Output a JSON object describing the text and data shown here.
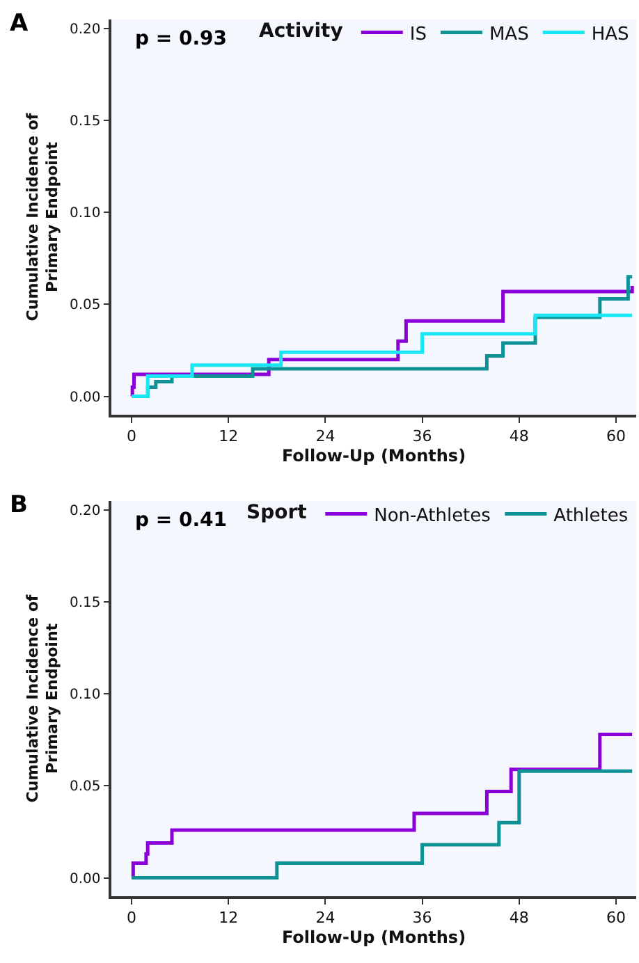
{
  "chart_data": [
    {
      "type": "step",
      "title": "A",
      "xlabel": "Follow-Up (Months)",
      "ylabel": "Cumulative Incidence of\nPrimary Endpoint",
      "legend_title": "Activity",
      "legend": "top right",
      "annotations": [
        "p = 0.93"
      ],
      "xlim": [
        -2.5,
        62.5
      ],
      "ylim": [
        -0.01,
        0.205
      ],
      "xticks": [
        0,
        12,
        24,
        36,
        48,
        60
      ],
      "yticks": [
        {
          "value": 0,
          "label": "0.00"
        },
        {
          "value": 0.05,
          "label": "0.05"
        },
        {
          "value": 0.1,
          "label": "0.10"
        },
        {
          "value": 0.15,
          "label": "0.15"
        },
        {
          "value": 0.2,
          "label": "0.20"
        }
      ],
      "grid": false,
      "series": [
        {
          "name": "IS",
          "color": "#8b00d6",
          "x": [
            0,
            0.1,
            0.3,
            17,
            33,
            34,
            46,
            62
          ],
          "values": [
            0,
            0.005,
            0.012,
            0.02,
            0.03,
            0.041,
            0.057,
            0.06
          ]
        },
        {
          "name": "MAS",
          "color": "#0e9296",
          "x": [
            0,
            2,
            3,
            5,
            15,
            44,
            46,
            50,
            58,
            61.5,
            62
          ],
          "values": [
            0,
            0.005,
            0.008,
            0.011,
            0.015,
            0.022,
            0.029,
            0.043,
            0.053,
            0.065,
            0.065
          ]
        },
        {
          "name": "HAS",
          "color": "#19e6f5",
          "x": [
            0,
            2,
            7.5,
            18.5,
            36,
            50,
            62
          ],
          "values": [
            0,
            0.011,
            0.017,
            0.024,
            0.034,
            0.044,
            0.044
          ]
        }
      ]
    },
    {
      "type": "step",
      "title": "B",
      "xlabel": "Follow-Up (Months)",
      "ylabel": "Cumulative Incidence of\nPrimary Endpoint",
      "legend_title": "Sport",
      "legend": "top right",
      "annotations": [
        "p = 0.41"
      ],
      "xlim": [
        -2.5,
        62.5
      ],
      "ylim": [
        -0.01,
        0.205
      ],
      "xticks": [
        0,
        12,
        24,
        36,
        48,
        60
      ],
      "yticks": [
        {
          "value": 0,
          "label": "0.00"
        },
        {
          "value": 0.05,
          "label": "0.05"
        },
        {
          "value": 0.1,
          "label": "0.10"
        },
        {
          "value": 0.15,
          "label": "0.15"
        },
        {
          "value": 0.2,
          "label": "0.20"
        }
      ],
      "grid": false,
      "series": [
        {
          "name": "Non-Athletes",
          "color": "#8b00d6",
          "x": [
            0,
            0.2,
            1.8,
            2,
            5,
            35,
            44,
            47,
            58,
            62
          ],
          "values": [
            0,
            0.008,
            0.013,
            0.019,
            0.026,
            0.035,
            0.047,
            0.059,
            0.078,
            0.078
          ]
        },
        {
          "name": "Athletes",
          "color": "#0e9296",
          "x": [
            0,
            18,
            36,
            45.5,
            48,
            62
          ],
          "values": [
            0,
            0.008,
            0.018,
            0.03,
            0.058,
            0.058
          ]
        }
      ]
    }
  ]
}
